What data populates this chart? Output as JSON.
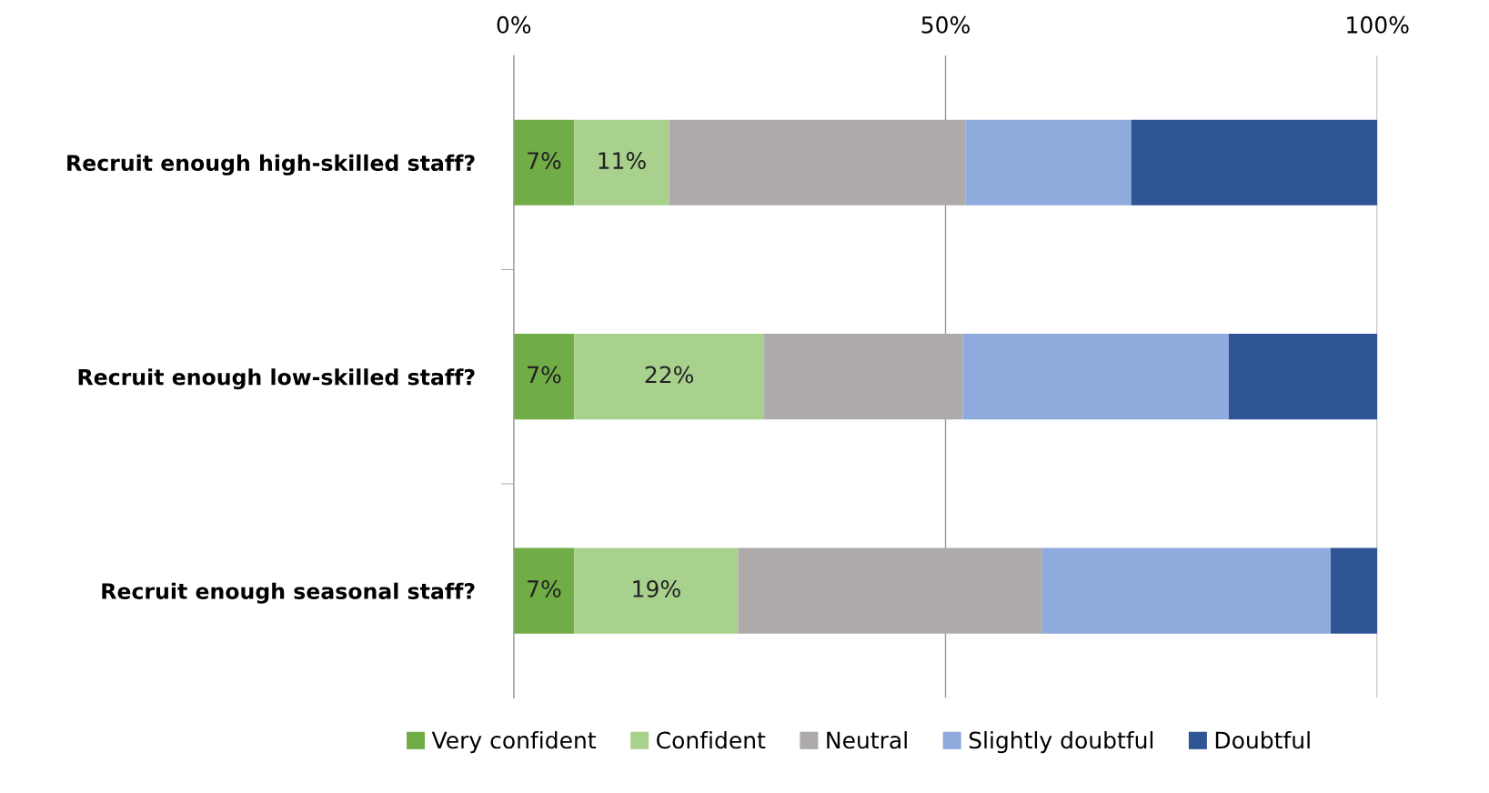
{
  "chart_data": {
    "type": "bar",
    "orientation": "horizontal",
    "stacked": true,
    "categories": [
      "Recruit enough high-skilled staff?",
      "Recruit enough low-skilled staff?",
      "Recruit enough seasonal staff?"
    ],
    "series": [
      {
        "name": "Very confident",
        "color": "#70ad47",
        "values": [
          7,
          7,
          7
        ],
        "value_labels": [
          "7%",
          "7%",
          "7%"
        ]
      },
      {
        "name": "Confident",
        "color": "#a9d18e",
        "values": [
          11,
          22,
          19
        ],
        "value_labels": [
          "11%",
          "22%",
          "19%"
        ]
      },
      {
        "name": "Neutral",
        "color": "#aeaaaa",
        "values": [
          34.3,
          23.0,
          35.2
        ]
      },
      {
        "name": "Slightly doubtful",
        "color": "#8faadc",
        "values": [
          19.2,
          30.8,
          33.4
        ]
      },
      {
        "name": "Doubtful",
        "color": "#2f5597",
        "values": [
          28.5,
          17.2,
          5.4
        ]
      }
    ],
    "xlim": [
      0,
      100
    ],
    "xticks": [
      {
        "value": 0,
        "label": "0%"
      },
      {
        "value": 50,
        "label": "50%"
      },
      {
        "value": 100,
        "label": "100%"
      }
    ],
    "grid": "x",
    "legend": "bottom"
  }
}
